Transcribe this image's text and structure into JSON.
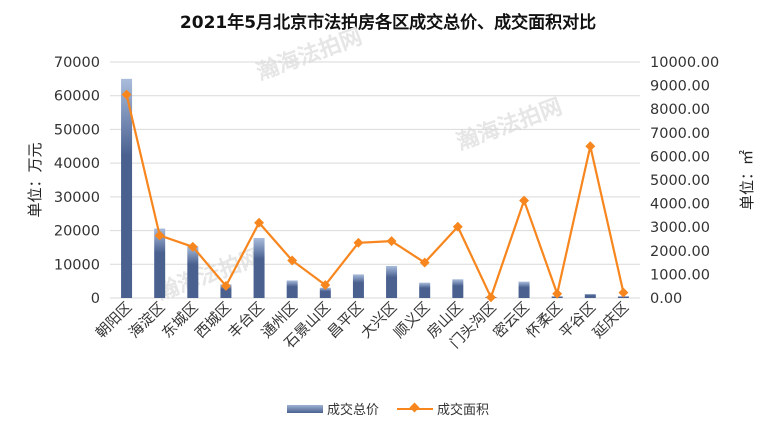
{
  "chart_data": {
    "type": "bar+line",
    "title": "2021年5月北京市法拍房各区成交总价、成交面积对比",
    "categories": [
      "朝阳区",
      "海淀区",
      "东城区",
      "西城区",
      "丰台区",
      "通州区",
      "石景山区",
      "昌平区",
      "大兴区",
      "顺义区",
      "房山区",
      "门头沟区",
      "密云区",
      "怀柔区",
      "平谷区",
      "延庆区"
    ],
    "series": [
      {
        "name": "成交总价",
        "type": "bar",
        "axis": "left",
        "color": "#4a6190",
        "values": [
          65000,
          20600,
          15400,
          4050,
          17800,
          5200,
          3050,
          7000,
          9500,
          4550,
          5550,
          300,
          4850,
          500,
          1200,
          500
        ]
      },
      {
        "name": "成交面积",
        "type": "line",
        "axis": "right",
        "color": "#f7861e",
        "values": [
          8620,
          2650,
          2170,
          510,
          3190,
          1590,
          550,
          2340,
          2410,
          1500,
          3020,
          30,
          4130,
          180,
          6430,
          230
        ]
      }
    ],
    "ylabel_left": "单位：万元",
    "ylabel_right": "单位：㎡",
    "ylim_left": [
      0,
      70000
    ],
    "ylim_right": [
      0,
      10000
    ],
    "yticks_left": [
      "0",
      "10000",
      "20000",
      "30000",
      "40000",
      "50000",
      "60000",
      "70000"
    ],
    "yticks_right": [
      "0.00",
      "1000.00",
      "2000.00",
      "3000.00",
      "4000.00",
      "5000.00",
      "6000.00",
      "7000.00",
      "8000.00",
      "9000.00",
      "10000.00"
    ],
    "grid": true,
    "legend_position": "bottom",
    "watermark": "瀚海法拍网 www.fapai.cn"
  }
}
